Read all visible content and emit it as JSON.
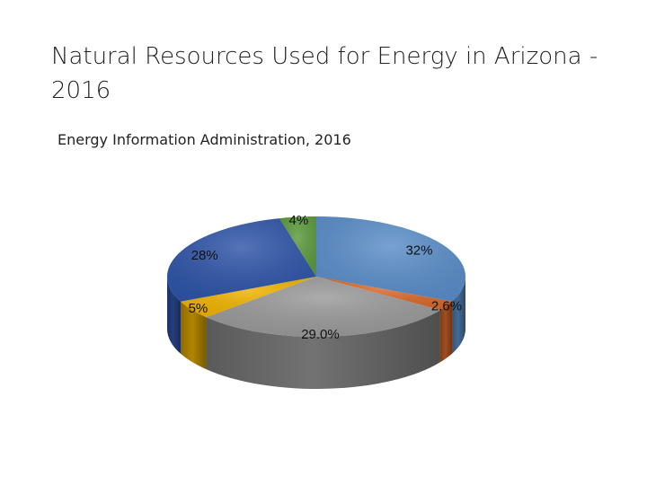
{
  "slide": {
    "title": "Natural Resources Used for Energy in Arizona - 2016",
    "subtitle": "Energy Information Administration, 2016"
  },
  "chart_data": {
    "type": "pie",
    "style": "3d",
    "slices": [
      {
        "value": 32,
        "label": "32%",
        "color": "#5b8ec9"
      },
      {
        "value": 2.6,
        "label": "2.6%",
        "color": "#d9692a"
      },
      {
        "value": 29.0,
        "label": "29.0%",
        "color": "#9a9a9a"
      },
      {
        "value": 5,
        "label": "5%",
        "color": "#f0b300"
      },
      {
        "value": 28,
        "label": "28%",
        "color": "#2f55a8"
      },
      {
        "value": 4,
        "label": "4%",
        "color": "#5c9a3c"
      }
    ]
  }
}
